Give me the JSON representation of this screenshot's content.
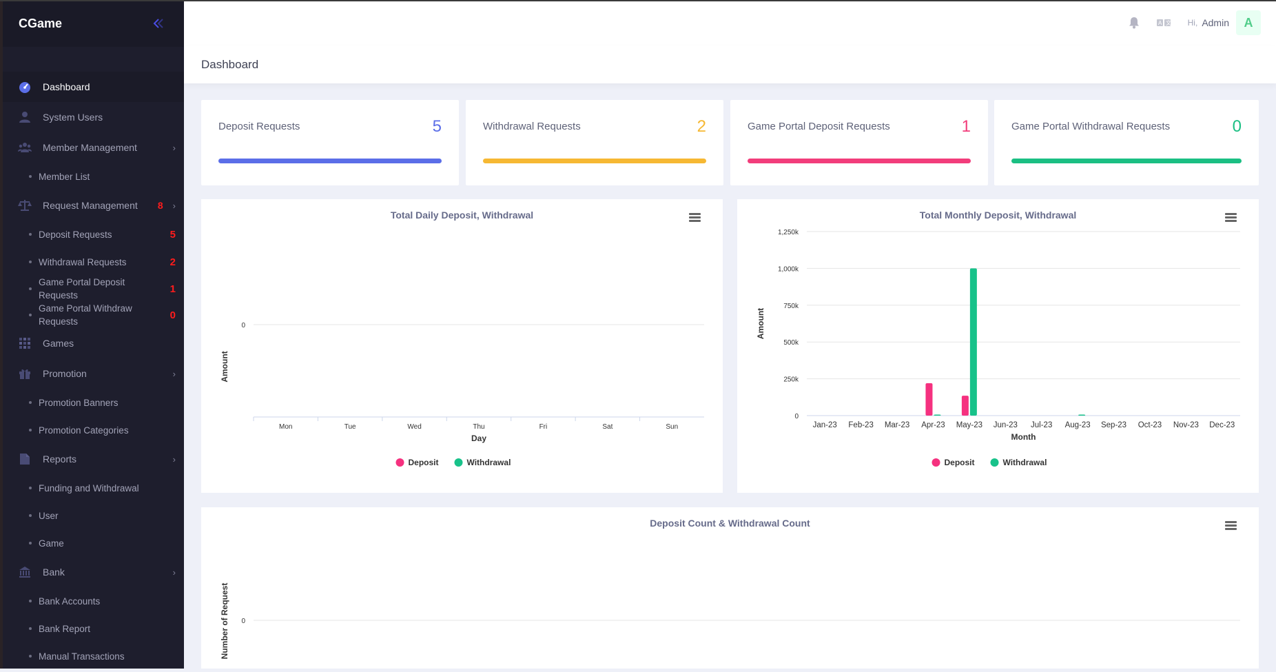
{
  "app": {
    "brand": "CGame"
  },
  "sidebar": {
    "items": [
      {
        "label": "Dashboard",
        "icon": "dashboard-icon",
        "active": true
      },
      {
        "label": "System Users",
        "icon": "user-icon"
      },
      {
        "label": "Member Management",
        "icon": "users-icon",
        "expandable": true
      },
      {
        "label": "Member List",
        "sub": true
      },
      {
        "label": "Request Management",
        "icon": "scale-icon",
        "badge": "8",
        "expandable": true
      },
      {
        "label": "Deposit Requests",
        "sub": true,
        "badge": "5"
      },
      {
        "label": "Withdrawal Requests",
        "sub": true,
        "badge": "2"
      },
      {
        "label": "Game Portal Deposit Requests",
        "sub": true,
        "badge": "1"
      },
      {
        "label": "Game Portal Withdraw Requests",
        "sub": true,
        "badge": "0"
      },
      {
        "label": "Games",
        "icon": "grid-icon"
      },
      {
        "label": "Promotion",
        "icon": "gift-icon",
        "expandable": true
      },
      {
        "label": "Promotion Banners",
        "sub": true
      },
      {
        "label": "Promotion Categories",
        "sub": true
      },
      {
        "label": "Reports",
        "icon": "document-icon",
        "expandable": true
      },
      {
        "label": "Funding and Withdrawal",
        "sub": true
      },
      {
        "label": "User",
        "sub": true
      },
      {
        "label": "Game",
        "sub": true
      },
      {
        "label": "Bank",
        "icon": "bank-icon",
        "expandable": true
      },
      {
        "label": "Bank Accounts",
        "sub": true
      },
      {
        "label": "Bank Report",
        "sub": true
      },
      {
        "label": "Manual Transactions",
        "sub": true
      }
    ]
  },
  "header": {
    "greeting": "Hi,",
    "user_name": "Admin",
    "avatar_letter": "A"
  },
  "page": {
    "title": "Dashboard"
  },
  "stats": [
    {
      "title": "Deposit Requests",
      "value": "5",
      "color": "#5b6ee8"
    },
    {
      "title": "Withdrawal Requests",
      "value": "2",
      "color": "#f6b833"
    },
    {
      "title": "Game Portal Deposit Requests",
      "value": "1",
      "color": "#f23d7b"
    },
    {
      "title": "Game Portal Withdrawal Requests",
      "value": "0",
      "color": "#1bbf83"
    }
  ],
  "colors": {
    "deposit": "#f5317f",
    "withdrawal": "#18c28a"
  },
  "chart_data": [
    {
      "type": "bar",
      "title": "Total Daily Deposit, Withdrawal",
      "xlabel": "Day",
      "ylabel": "Amount",
      "categories": [
        "Mon",
        "Tue",
        "Wed",
        "Thu",
        "Fri",
        "Sat",
        "Sun"
      ],
      "yticks": [
        "0"
      ],
      "series": [
        {
          "name": "Deposit",
          "values": [
            0,
            0,
            0,
            0,
            0,
            0,
            0
          ]
        },
        {
          "name": "Withdrawal",
          "values": [
            0,
            0,
            0,
            0,
            0,
            0,
            0
          ]
        }
      ],
      "legend": "bottom"
    },
    {
      "type": "bar",
      "title": "Total Monthly Deposit, Withdrawal",
      "xlabel": "Month",
      "ylabel": "Amount",
      "categories": [
        "Jan-23",
        "Feb-23",
        "Mar-23",
        "Apr-23",
        "May-23",
        "Jun-23",
        "Jul-23",
        "Aug-23",
        "Sep-23",
        "Oct-23",
        "Nov-23",
        "Dec-23"
      ],
      "yticks": [
        "0",
        "250k",
        "500k",
        "750k",
        "1,000k",
        "1,250k"
      ],
      "ylim": [
        0,
        1250000
      ],
      "series": [
        {
          "name": "Deposit",
          "values": [
            0,
            0,
            0,
            220000,
            135000,
            0,
            0,
            0,
            0,
            0,
            0,
            0
          ]
        },
        {
          "name": "Withdrawal",
          "values": [
            0,
            0,
            0,
            3000,
            1000000,
            0,
            0,
            3000,
            0,
            0,
            0,
            0
          ]
        }
      ],
      "legend": "bottom",
      "grid": true
    },
    {
      "type": "bar",
      "title": "Deposit Count & Withdrawal Count",
      "ylabel": "Number of Request",
      "yticks": [
        "0"
      ],
      "series": []
    }
  ]
}
